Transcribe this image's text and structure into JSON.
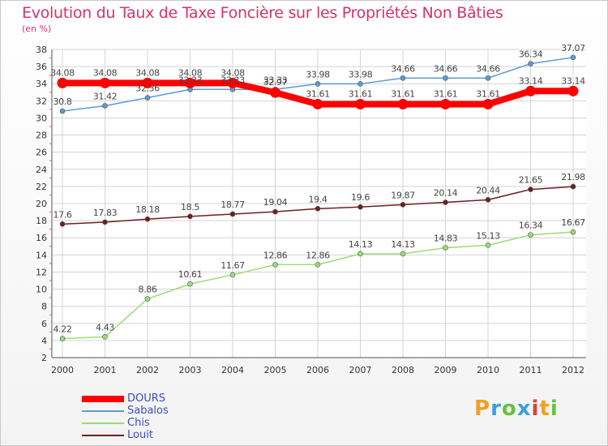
{
  "chart_data": {
    "type": "line",
    "title": "Evolution du Taux de Taxe Foncière sur les Propriétés Non Bâties",
    "unit_label": "(en %)",
    "x": [
      "2000",
      "2001",
      "2002",
      "2003",
      "2004",
      "2005",
      "2006",
      "2007",
      "2008",
      "2009",
      "2010",
      "2011",
      "2012"
    ],
    "ylim": [
      2,
      38
    ],
    "yticks": [
      2,
      4,
      6,
      8,
      10,
      12,
      14,
      16,
      18,
      20,
      22,
      24,
      26,
      28,
      30,
      32,
      34,
      36,
      38
    ],
    "grid": true,
    "legend_position": "bottom-left",
    "series": [
      {
        "name": "DOURS",
        "color": "#ff0000",
        "width": 8,
        "values": [
          34.08,
          34.08,
          34.08,
          34.08,
          34.08,
          32.97,
          31.61,
          31.61,
          31.61,
          31.61,
          31.61,
          33.14,
          33.14
        ],
        "labels": [
          "34.08",
          "34.08",
          "34.08",
          "34.08",
          "34.08",
          "32.97",
          "31.61",
          "31.61",
          "31.61",
          "31.61",
          "31.61",
          "33.14",
          "33.14"
        ]
      },
      {
        "name": "Sabalos",
        "color": "#5b9bd5",
        "width": 1.5,
        "values": [
          30.8,
          31.42,
          32.36,
          33.33,
          33.33,
          33.33,
          33.98,
          33.98,
          34.66,
          34.66,
          34.66,
          36.34,
          37.07
        ],
        "labels": [
          "30.8",
          "31.42",
          "32.36",
          "33.33",
          "33.33",
          "33.33",
          "33.98",
          "33.98",
          "34.66",
          "34.66",
          "34.66",
          "36.34",
          "37.07"
        ]
      },
      {
        "name": "Chis",
        "color": "#99dd77",
        "width": 1.5,
        "values": [
          4.22,
          4.43,
          8.86,
          10.61,
          11.67,
          12.86,
          12.86,
          14.13,
          14.13,
          14.83,
          15.13,
          16.34,
          16.67
        ],
        "labels": [
          "4.22",
          "4.43",
          "8.86",
          "10.61",
          "11.67",
          "12.86",
          "12.86",
          "14.13",
          "14.13",
          "14.83",
          "15.13",
          "16.34",
          "16.67"
        ]
      },
      {
        "name": "Louit",
        "color": "#6b2020",
        "width": 1.5,
        "values": [
          17.6,
          17.83,
          18.18,
          18.5,
          18.77,
          19.04,
          19.4,
          19.6,
          19.87,
          20.14,
          20.44,
          21.65,
          21.98
        ],
        "labels": [
          "17.6",
          "17.83",
          "18.18",
          "18.5",
          "18.77",
          "19.04",
          "19.4",
          "19.6",
          "19.87",
          "20.14",
          "20.44",
          "21.65",
          "21.98"
        ]
      }
    ]
  },
  "legend": {
    "items": [
      {
        "name": "DOURS",
        "color": "#ff0000"
      },
      {
        "name": "Sabalos",
        "color": "#5b9bd5"
      },
      {
        "name": "Chis",
        "color": "#99dd77"
      },
      {
        "name": "Louit",
        "color": "#6b2020"
      }
    ]
  },
  "logo": {
    "letters": [
      "P",
      "r",
      "o",
      "x",
      "i",
      "t",
      "i"
    ],
    "colors": [
      "#f0a020",
      "#3ba0e0",
      "#6abf40",
      "#3ba0e0",
      "#e04040",
      "#f0a020",
      "#6abf40"
    ]
  }
}
